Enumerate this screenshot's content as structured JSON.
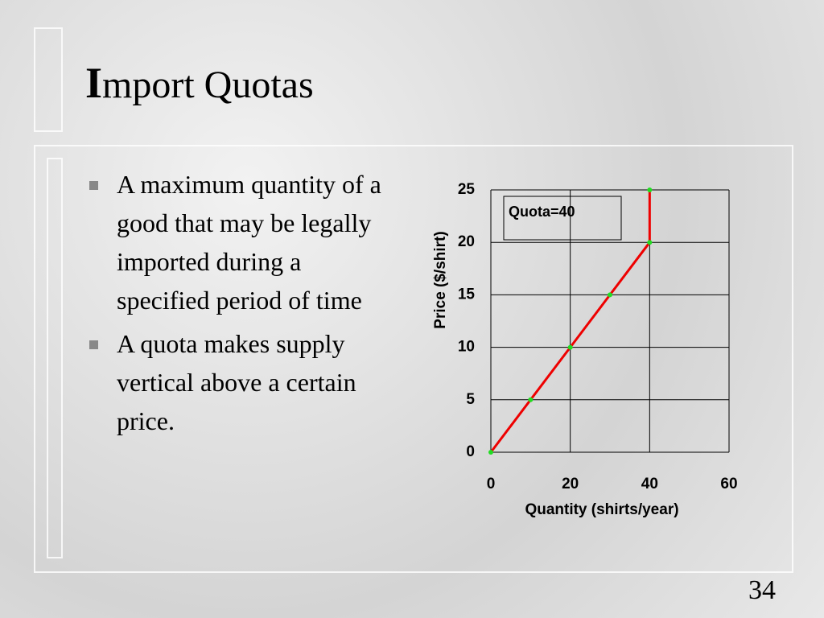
{
  "title": "Import Quotas",
  "bullets": [
    "A maximum quantity of a good that may be legally imported during a specified period of time",
    "A quota makes supply vertical above a certain price."
  ],
  "page_number": "34",
  "chart_data": {
    "type": "line",
    "x": [
      0,
      10,
      20,
      30,
      40,
      40
    ],
    "values": [
      0,
      5,
      10,
      15,
      20,
      25
    ],
    "color": "#ee0000",
    "marker_color": "#22dd22",
    "xlim": [
      0,
      60
    ],
    "ylim": [
      0,
      25
    ],
    "xticks": [
      0,
      20,
      40,
      60
    ],
    "yticks": [
      0,
      5,
      10,
      15,
      20,
      25
    ],
    "grid": true,
    "x_label": "Quantity (shirts/year)",
    "y_label": "Price ($/shirt)",
    "annotation": "Quota=40"
  }
}
